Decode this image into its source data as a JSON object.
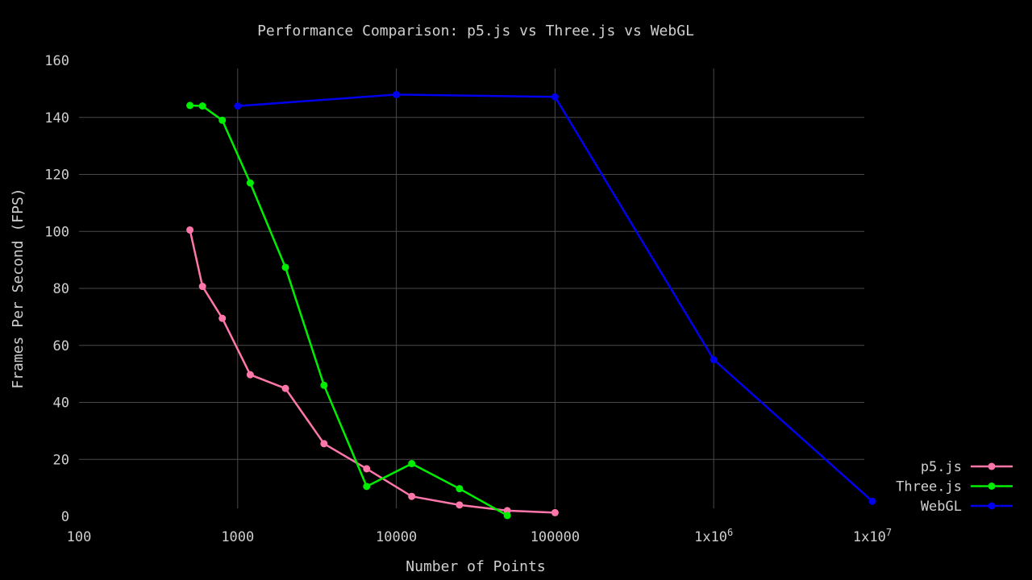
{
  "chart_data": {
    "type": "line",
    "title": "Performance Comparison: p5.js vs Three.js vs WebGL",
    "xlabel": "Number of Points",
    "ylabel": "Frames Per Second (FPS)",
    "x_scale": "log",
    "xlim": [
      100,
      10000000
    ],
    "ylim": [
      0,
      160
    ],
    "x_ticks": [
      {
        "value": 100,
        "label": "100"
      },
      {
        "value": 1000,
        "label": "1000"
      },
      {
        "value": 10000,
        "label": "10000"
      },
      {
        "value": 100000,
        "label": "100000"
      },
      {
        "value": 1000000,
        "label": "1x10",
        "sup": "6"
      },
      {
        "value": 10000000,
        "label": "1x10",
        "sup": "7"
      }
    ],
    "y_ticks": [
      0,
      20,
      40,
      60,
      80,
      100,
      120,
      140,
      160
    ],
    "grid": true,
    "legend_position": "bottom-right",
    "series": [
      {
        "name": "p5.js",
        "color": "#ff77aa",
        "points": [
          [
            500,
            100.5
          ],
          [
            600,
            80.7
          ],
          [
            800,
            69.5
          ],
          [
            1200,
            49.7
          ],
          [
            2000,
            44.9
          ],
          [
            3500,
            25.5
          ],
          [
            6500,
            16.7
          ],
          [
            12500,
            7.0
          ],
          [
            25000,
            4.0
          ],
          [
            50000,
            2.0
          ],
          [
            100000,
            1.3
          ]
        ]
      },
      {
        "name": "Three.js",
        "color": "#00ee00",
        "points": [
          [
            500,
            144.2
          ],
          [
            600,
            144.0
          ],
          [
            800,
            139.0
          ],
          [
            1200,
            117.0
          ],
          [
            2000,
            87.4
          ],
          [
            3500,
            46.0
          ],
          [
            6500,
            10.5
          ],
          [
            12500,
            18.5
          ],
          [
            25000,
            9.7
          ],
          [
            50000,
            0.3
          ]
        ]
      },
      {
        "name": "WebGL",
        "color": "#0000ee",
        "points": [
          [
            1000,
            144.0
          ],
          [
            10000,
            148.0
          ],
          [
            100000,
            147.2
          ],
          [
            1000000,
            55.0
          ],
          [
            10000000,
            5.3
          ]
        ]
      }
    ]
  }
}
